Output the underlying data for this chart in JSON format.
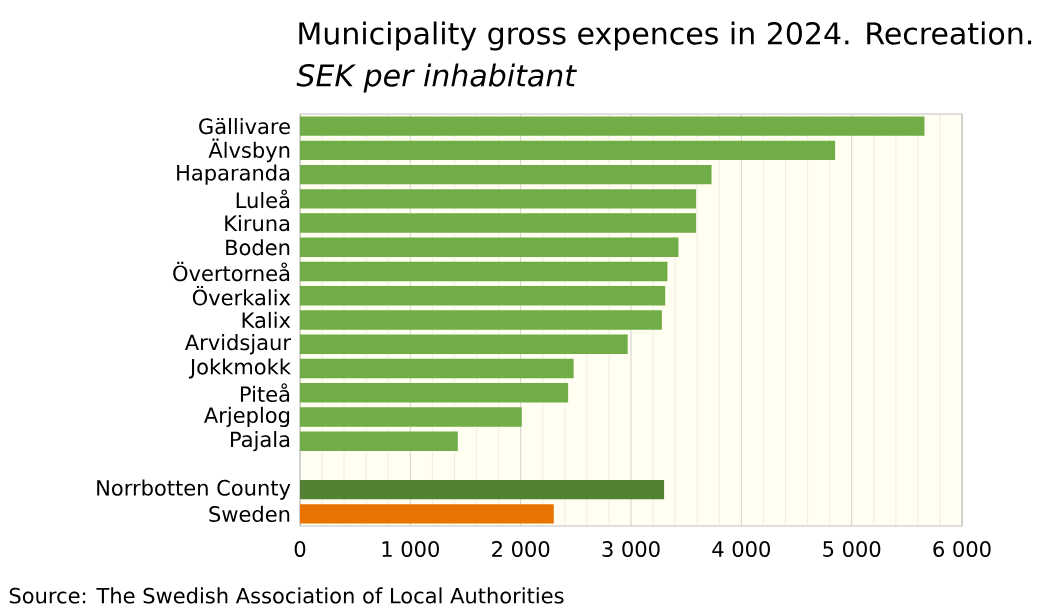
{
  "chart_data": {
    "type": "bar",
    "orientation": "horizontal",
    "title": "Municipality gross expences in 2024. Recreation.",
    "subtitle": "SEK per inhabitant",
    "categories": [
      "Gällivare",
      "Älvsbyn",
      "Haparanda",
      "Luleå",
      "Kiruna",
      "Boden",
      "Övertorneå",
      "Överkalix",
      "Kalix",
      "Arvidsjaur",
      "Jokkmokk",
      "Piteå",
      "Arjeplog",
      "Pajala",
      null,
      "Norrbotten County",
      "Sweden"
    ],
    "values": [
      5660,
      4850,
      3730,
      3590,
      3590,
      3430,
      3330,
      3310,
      3280,
      2970,
      2480,
      2430,
      2010,
      1430,
      null,
      3300,
      2300
    ],
    "colors": [
      "#70ad47",
      "#70ad47",
      "#70ad47",
      "#70ad47",
      "#70ad47",
      "#70ad47",
      "#70ad47",
      "#70ad47",
      "#70ad47",
      "#70ad47",
      "#70ad47",
      "#70ad47",
      "#70ad47",
      "#70ad47",
      "#70ad47",
      "#548235",
      "#e97300"
    ],
    "xlim": [
      0,
      6000
    ],
    "xticks": [
      0,
      {
        "value": 1000,
        "label": "1 000"
      },
      {
        "value": 2000,
        "label": "2 000"
      },
      {
        "value": 3000,
        "label": "3 000"
      },
      {
        "value": 4000,
        "label": "4 000"
      },
      {
        "value": 5000,
        "label": "5 000"
      },
      {
        "value": 6000,
        "label": "6 000"
      }
    ],
    "grid": "x",
    "annotations": [
      "Source: The Swedish Association of Local Authorities"
    ]
  }
}
